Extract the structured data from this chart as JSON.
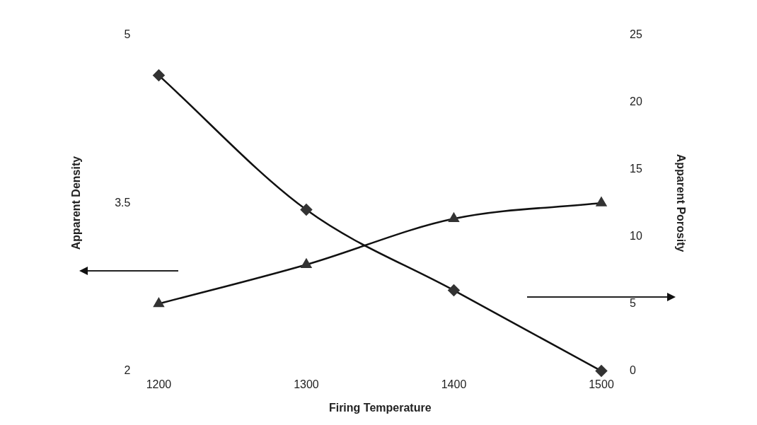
{
  "chart_data": {
    "type": "line",
    "xlabel": "Firing Temperature",
    "ylabel": "Apparent Density",
    "y2label": "Apparent Porosity",
    "x": [
      1200,
      1300,
      1400,
      1500
    ],
    "series": [
      {
        "color": "#333333",
        "marker": "diamond",
        "axis": "y2",
        "values": [
          22,
          12,
          6,
          0
        ]
      },
      {
        "color": "#333333",
        "marker": "triangle",
        "values": [
          2.6,
          2.95,
          3.36,
          3.5
        ]
      }
    ],
    "xlim": [
      1200,
      1500
    ],
    "xticks": [
      1200,
      1300,
      1400,
      1500
    ],
    "ylim": [
      2,
      5
    ],
    "yticks": [
      2,
      3.5,
      5
    ],
    "y2lim": [
      0,
      25
    ],
    "y2ticks": [
      0,
      5,
      10,
      15,
      20,
      25
    ],
    "grid": false,
    "legend": false,
    "line_style": "solid"
  }
}
